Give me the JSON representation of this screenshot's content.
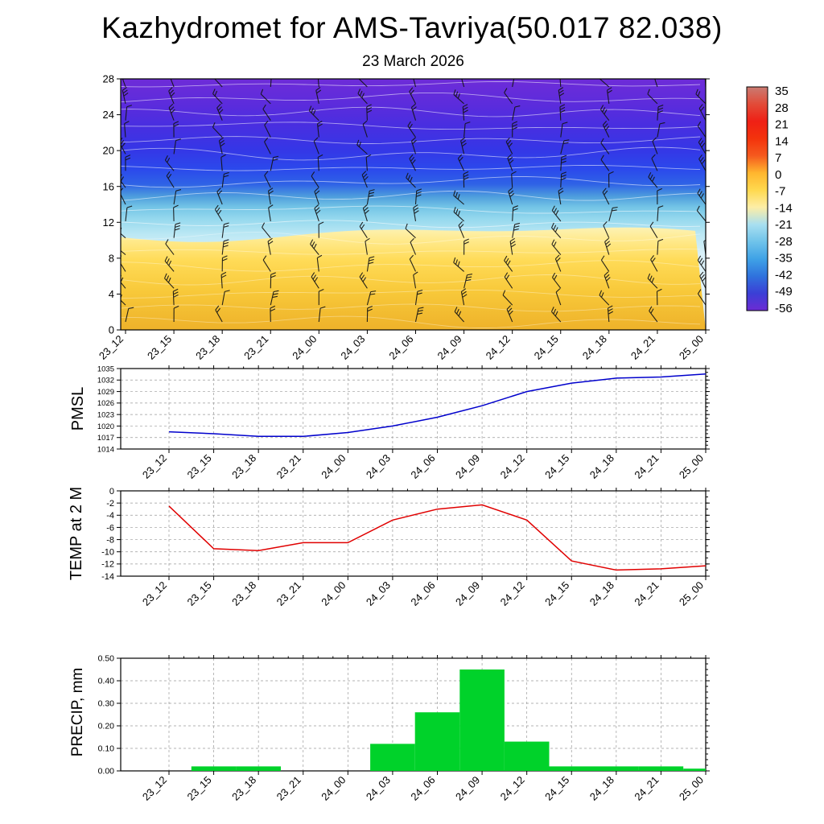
{
  "page": {
    "title": "Kazhydromet for AMS-Tavriya(50.017 82.038)",
    "date_subtitle": "23 March 2026"
  },
  "time_labels": [
    "23_12",
    "23_15",
    "23_18",
    "23_21",
    "24_00",
    "24_03",
    "24_06",
    "24_09",
    "24_12",
    "24_15",
    "24_18",
    "24_21",
    "25_00"
  ],
  "chart_data": [
    {
      "id": "upper_air",
      "type": "heatmap",
      "title": "23 March 2026",
      "ylim": [
        0,
        28
      ],
      "yticks": [
        0,
        4,
        8,
        12,
        16,
        20,
        24,
        28
      ],
      "x_categories": [
        "23_12",
        "23_15",
        "23_18",
        "23_21",
        "24_00",
        "24_03",
        "24_06",
        "24_09",
        "24_12",
        "24_15",
        "24_18",
        "24_21",
        "25_00"
      ],
      "description": "Time-height temperature cross-section with wind barbs; warm yellow/orange layer (about -7 to 0) below height ~10, pale transition ~11-13, light blue ~13-16, deep blue ~17-21, violet/purple (about -49 to -56) above ~22; thin white temperature contours overlaid and black wind barbs at every 3-hour column",
      "colorbar": {
        "ticks": [
          35,
          28,
          21,
          14,
          7,
          0,
          -7,
          -14,
          -21,
          -28,
          -35,
          -42,
          -49,
          -56
        ],
        "gradient": [
          "#c97b72",
          "#e24b38",
          "#ef2015",
          "#f3330c",
          "#f55a1e",
          "#ffb62e",
          "#ffd94f",
          "#fdeea6",
          "#a8dff0",
          "#6fc3ea",
          "#3fa2e6",
          "#2f72dd",
          "#3b3fd6",
          "#6d2bd4"
        ]
      }
    },
    {
      "id": "pmsl",
      "type": "line",
      "label": "PMSL",
      "color": "#0000cc",
      "ylim": [
        1014,
        1035
      ],
      "yticks": [
        1014,
        1017,
        1020,
        1023,
        1026,
        1029,
        1032,
        1035
      ],
      "values": [
        1018.5,
        1018.0,
        1017.3,
        1017.3,
        1018.3,
        1020.0,
        1022.3,
        1025.3,
        1029.0,
        1031.2,
        1032.5,
        1032.8,
        1033.6
      ]
    },
    {
      "id": "temp2m",
      "type": "line",
      "label": "TEMP at 2 M",
      "color": "#e00000",
      "ylim": [
        -14,
        0
      ],
      "yticks": [
        0,
        -2,
        -4,
        -6,
        -8,
        -10,
        -12,
        -14
      ],
      "values": [
        -2.5,
        -9.5,
        -9.8,
        -8.5,
        -8.5,
        -4.8,
        -3.0,
        -2.3,
        -4.8,
        -11.5,
        -13.0,
        -12.8,
        -12.3
      ]
    },
    {
      "id": "precip",
      "type": "bar",
      "label": "PRECIP, mm",
      "color": "#00d22a",
      "ylim": [
        0,
        0.5
      ],
      "yticks": [
        0.0,
        0.1,
        0.2,
        0.3,
        0.4,
        0.5
      ],
      "ytick_decimals": 2,
      "values": [
        0,
        0.02,
        0.02,
        0,
        0,
        0.12,
        0.26,
        0.45,
        0.13,
        0.02,
        0.02,
        0.02,
        0.01
      ]
    }
  ]
}
